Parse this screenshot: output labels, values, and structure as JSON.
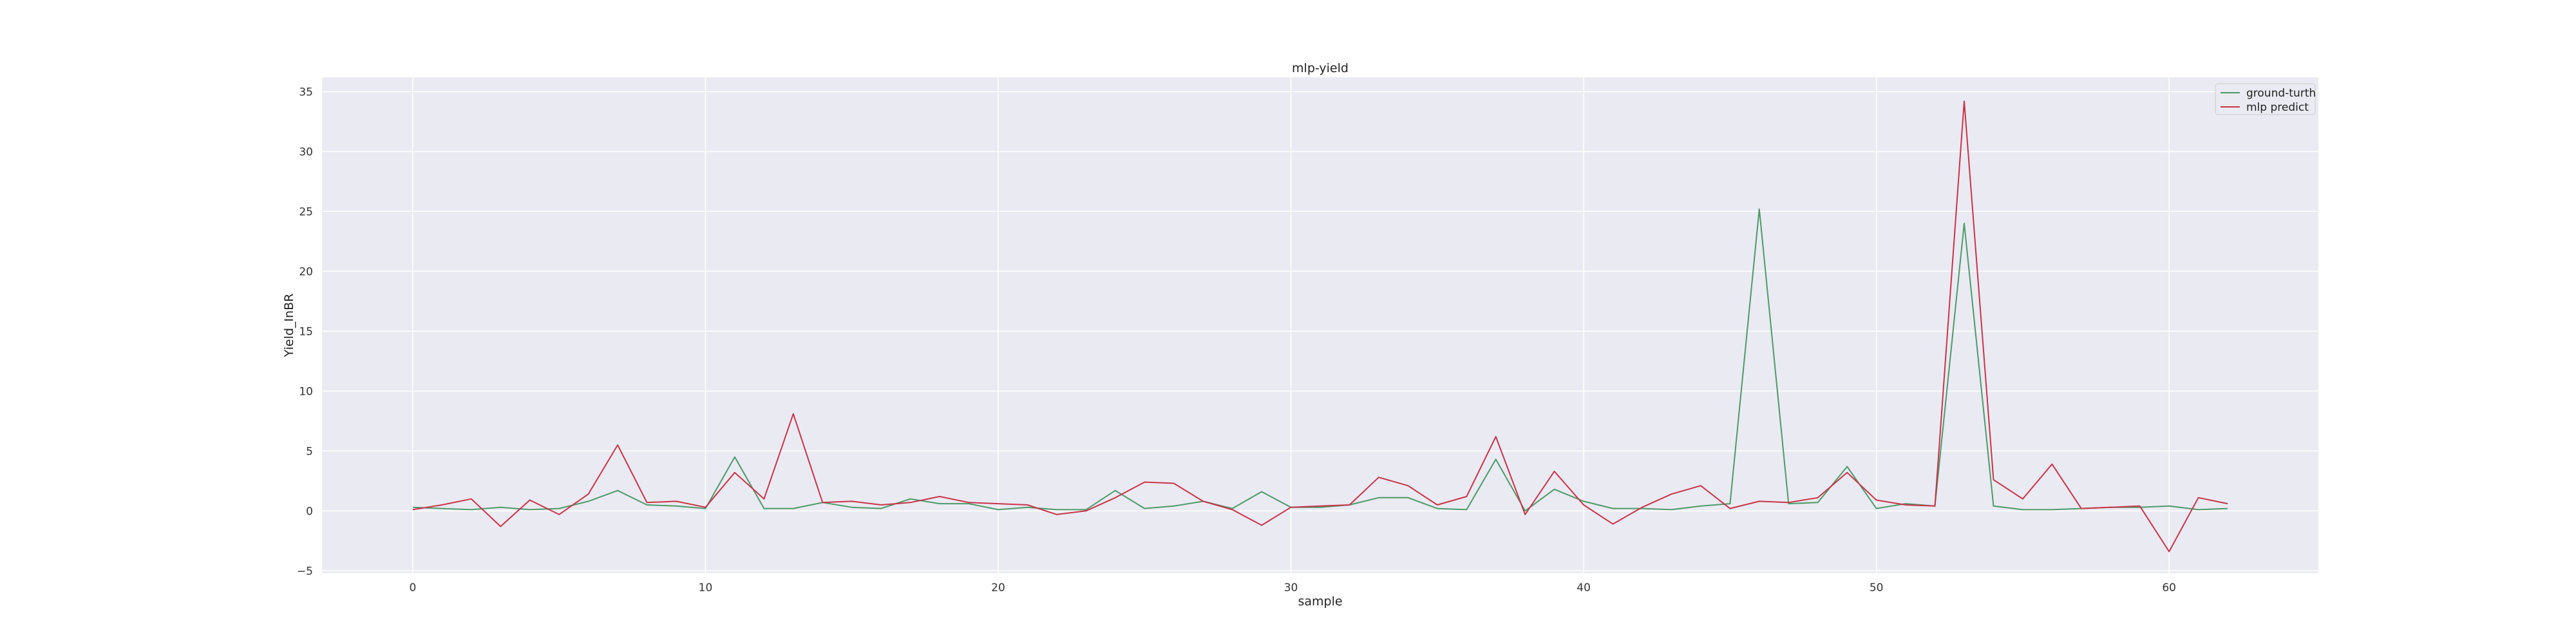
{
  "chart_data": {
    "type": "line",
    "title": "mlp-yield",
    "xlabel": "sample",
    "ylabel": "Yield_InBR",
    "xlim": [
      -3.1,
      65.1
    ],
    "ylim": [
      -5.2,
      36.2
    ],
    "xticks": [
      0,
      10,
      20,
      30,
      40,
      50,
      60
    ],
    "yticks": [
      -5,
      0,
      5,
      10,
      15,
      20,
      25,
      30,
      35
    ],
    "xtick_labels": [
      "0",
      "10",
      "20",
      "30",
      "40",
      "50",
      "60"
    ],
    "ytick_labels": [
      "−5",
      "0",
      "5",
      "10",
      "15",
      "20",
      "25",
      "30",
      "35"
    ],
    "grid": true,
    "background": "#eaeaf2",
    "legend_position": "top-right",
    "x": [
      0,
      1,
      2,
      3,
      4,
      5,
      6,
      7,
      8,
      9,
      10,
      11,
      12,
      13,
      14,
      15,
      16,
      17,
      18,
      19,
      20,
      21,
      22,
      23,
      24,
      25,
      26,
      27,
      28,
      29,
      30,
      31,
      32,
      33,
      34,
      35,
      36,
      37,
      38,
      39,
      40,
      41,
      42,
      43,
      44,
      45,
      46,
      47,
      48,
      49,
      50,
      51,
      52,
      53,
      54,
      55,
      56,
      57,
      58,
      59,
      60,
      61,
      62
    ],
    "series": [
      {
        "name": "ground-turth",
        "color": "#4c9a6a",
        "values": [
          0.3,
          0.2,
          0.1,
          0.3,
          0.1,
          0.2,
          0.8,
          1.7,
          0.5,
          0.4,
          0.2,
          4.5,
          0.2,
          0.2,
          0.7,
          0.3,
          0.2,
          1.0,
          0.6,
          0.6,
          0.1,
          0.3,
          0.1,
          0.1,
          1.7,
          0.2,
          0.4,
          0.8,
          0.2,
          1.6,
          0.3,
          0.3,
          0.5,
          1.1,
          1.1,
          0.2,
          0.1,
          4.3,
          0.0,
          1.8,
          0.8,
          0.2,
          0.2,
          0.1,
          0.4,
          0.6,
          25.2,
          0.6,
          0.7,
          3.7,
          0.2,
          0.6,
          0.4,
          24.0,
          0.4,
          0.1,
          0.1,
          0.2,
          0.3,
          0.3,
          0.4,
          0.1,
          0.2
        ]
      },
      {
        "name": "mlp predict",
        "color": "#c8344a",
        "values": [
          0.1,
          0.5,
          1.0,
          -1.3,
          0.9,
          -0.3,
          1.4,
          5.5,
          0.7,
          0.8,
          0.3,
          3.2,
          1.0,
          8.1,
          0.7,
          0.8,
          0.5,
          0.7,
          1.2,
          0.7,
          0.6,
          0.5,
          -0.3,
          0.0,
          1.1,
          2.4,
          2.3,
          0.8,
          0.1,
          -1.2,
          0.3,
          0.4,
          0.5,
          2.8,
          2.1,
          0.5,
          1.2,
          6.2,
          -0.3,
          3.3,
          0.5,
          -1.1,
          0.3,
          1.4,
          2.1,
          0.2,
          0.8,
          0.7,
          1.1,
          3.2,
          0.9,
          0.5,
          0.4,
          34.2,
          2.6,
          1.0,
          3.9,
          0.2,
          0.3,
          0.4,
          -3.4,
          1.1,
          0.6
        ]
      }
    ]
  }
}
